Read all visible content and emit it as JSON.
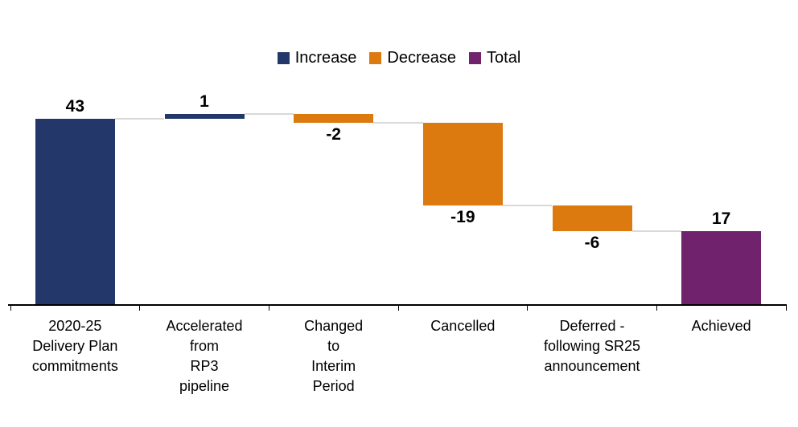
{
  "legend": {
    "items": [
      {
        "label": "Increase",
        "color": "#23376B"
      },
      {
        "label": "Decrease",
        "color": "#DC790F"
      },
      {
        "label": "Total",
        "color": "#71226D"
      }
    ]
  },
  "chart_data": {
    "type": "bar",
    "subtype": "waterfall",
    "title": "",
    "xlabel": "",
    "ylabel": "",
    "ylim": [
      0,
      50
    ],
    "grid": false,
    "legend_position": "top-center",
    "categories": [
      "2020-25 Delivery Plan commitments",
      "Accelerated from RP3 pipeline",
      "Changed to Interim Period",
      "Cancelled",
      "Deferred - following SR25 announcement",
      "Achieved"
    ],
    "category_labels": [
      "2020-25\nDelivery Plan\ncommitments",
      "Accelerated\nfrom\nRP3\npipeline",
      "Changed\nto\nInterim\nPeriod",
      "Cancelled",
      "Deferred -\nfollowing SR25\nannouncement",
      "Achieved"
    ],
    "bars": [
      {
        "value": 43,
        "label": "43",
        "start": 0,
        "end": 43,
        "role": "increase",
        "label_position": "above"
      },
      {
        "value": 1,
        "label": "1",
        "start": 43,
        "end": 44,
        "role": "increase",
        "label_position": "above"
      },
      {
        "value": -2,
        "label": "-2",
        "start": 44,
        "end": 42,
        "role": "decrease",
        "label_position": "below"
      },
      {
        "value": -19,
        "label": "-19",
        "start": 42,
        "end": 23,
        "role": "decrease",
        "label_position": "below"
      },
      {
        "value": -6,
        "label": "-6",
        "start": 23,
        "end": 17,
        "role": "decrease",
        "label_position": "below"
      },
      {
        "value": 17,
        "label": "17",
        "start": 0,
        "end": 17,
        "role": "total",
        "label_position": "above"
      }
    ],
    "colors": {
      "increase": "#23376B",
      "decrease": "#DC790F",
      "total": "#71226D",
      "connector": "#D9D9D9",
      "axis": "#000000"
    }
  }
}
